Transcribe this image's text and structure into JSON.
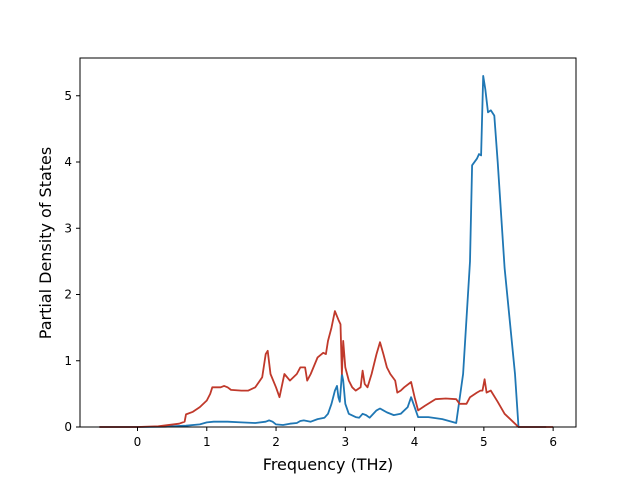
{
  "chart_data": {
    "type": "line",
    "title": "",
    "xlabel": "Frequency (THz)",
    "ylabel": "Partial Density of States",
    "xlim": [
      -0.83,
      6.33
    ],
    "ylim": [
      0,
      5.57
    ],
    "xticks": [
      0,
      1,
      2,
      3,
      4,
      5,
      6
    ],
    "yticks": [
      0,
      1,
      2,
      3,
      4,
      5
    ],
    "grid": false,
    "legend": "none",
    "series": [
      {
        "color": "#1f77b4",
        "points": [
          [
            -0.55,
            0.0
          ],
          [
            0.0,
            0.0
          ],
          [
            0.4,
            0.005
          ],
          [
            0.7,
            0.02
          ],
          [
            0.9,
            0.04
          ],
          [
            1.0,
            0.07
          ],
          [
            1.1,
            0.08
          ],
          [
            1.3,
            0.08
          ],
          [
            1.5,
            0.07
          ],
          [
            1.7,
            0.06
          ],
          [
            1.85,
            0.08
          ],
          [
            1.9,
            0.1
          ],
          [
            1.95,
            0.08
          ],
          [
            2.0,
            0.04
          ],
          [
            2.1,
            0.03
          ],
          [
            2.2,
            0.05
          ],
          [
            2.3,
            0.06
          ],
          [
            2.35,
            0.09
          ],
          [
            2.4,
            0.1
          ],
          [
            2.5,
            0.08
          ],
          [
            2.6,
            0.12
          ],
          [
            2.7,
            0.14
          ],
          [
            2.75,
            0.2
          ],
          [
            2.8,
            0.35
          ],
          [
            2.85,
            0.55
          ],
          [
            2.88,
            0.62
          ],
          [
            2.9,
            0.45
          ],
          [
            2.92,
            0.38
          ],
          [
            2.95,
            0.8
          ],
          [
            2.97,
            0.7
          ],
          [
            3.0,
            0.35
          ],
          [
            3.05,
            0.2
          ],
          [
            3.15,
            0.15
          ],
          [
            3.2,
            0.14
          ],
          [
            3.25,
            0.2
          ],
          [
            3.3,
            0.18
          ],
          [
            3.35,
            0.14
          ],
          [
            3.45,
            0.25
          ],
          [
            3.5,
            0.28
          ],
          [
            3.6,
            0.22
          ],
          [
            3.7,
            0.18
          ],
          [
            3.8,
            0.2
          ],
          [
            3.9,
            0.3
          ],
          [
            3.95,
            0.45
          ],
          [
            4.0,
            0.3
          ],
          [
            4.05,
            0.15
          ],
          [
            4.2,
            0.15
          ],
          [
            4.4,
            0.12
          ],
          [
            4.6,
            0.06
          ],
          [
            4.7,
            0.8
          ],
          [
            4.8,
            2.5
          ],
          [
            4.83,
            3.95
          ],
          [
            4.9,
            4.05
          ],
          [
            4.93,
            4.12
          ],
          [
            4.96,
            4.1
          ],
          [
            4.99,
            5.3
          ],
          [
            5.02,
            5.1
          ],
          [
            5.06,
            4.75
          ],
          [
            5.1,
            4.78
          ],
          [
            5.15,
            4.7
          ],
          [
            5.2,
            4.0
          ],
          [
            5.3,
            2.4
          ],
          [
            5.45,
            0.8
          ],
          [
            5.5,
            0.0
          ],
          [
            5.9,
            0.0
          ]
        ]
      },
      {
        "color": "#c0392b",
        "points": [
          [
            -0.55,
            0.0
          ],
          [
            0.0,
            0.0
          ],
          [
            0.3,
            0.01
          ],
          [
            0.6,
            0.05
          ],
          [
            0.68,
            0.08
          ],
          [
            0.7,
            0.19
          ],
          [
            0.8,
            0.23
          ],
          [
            0.9,
            0.3
          ],
          [
            1.0,
            0.4
          ],
          [
            1.05,
            0.5
          ],
          [
            1.08,
            0.6
          ],
          [
            1.15,
            0.6
          ],
          [
            1.2,
            0.6
          ],
          [
            1.25,
            0.62
          ],
          [
            1.3,
            0.6
          ],
          [
            1.35,
            0.56
          ],
          [
            1.5,
            0.55
          ],
          [
            1.6,
            0.55
          ],
          [
            1.7,
            0.6
          ],
          [
            1.8,
            0.75
          ],
          [
            1.85,
            1.1
          ],
          [
            1.88,
            1.15
          ],
          [
            1.92,
            0.8
          ],
          [
            2.0,
            0.6
          ],
          [
            2.05,
            0.45
          ],
          [
            2.1,
            0.7
          ],
          [
            2.12,
            0.8
          ],
          [
            2.2,
            0.7
          ],
          [
            2.3,
            0.8
          ],
          [
            2.35,
            0.9
          ],
          [
            2.42,
            0.9
          ],
          [
            2.45,
            0.7
          ],
          [
            2.5,
            0.8
          ],
          [
            2.6,
            1.05
          ],
          [
            2.68,
            1.12
          ],
          [
            2.72,
            1.1
          ],
          [
            2.75,
            1.3
          ],
          [
            2.8,
            1.5
          ],
          [
            2.85,
            1.75
          ],
          [
            2.9,
            1.62
          ],
          [
            2.93,
            1.55
          ],
          [
            2.95,
            0.8
          ],
          [
            2.97,
            1.3
          ],
          [
            3.0,
            0.9
          ],
          [
            3.05,
            0.7
          ],
          [
            3.1,
            0.6
          ],
          [
            3.15,
            0.55
          ],
          [
            3.22,
            0.6
          ],
          [
            3.25,
            0.85
          ],
          [
            3.28,
            0.65
          ],
          [
            3.32,
            0.6
          ],
          [
            3.38,
            0.8
          ],
          [
            3.45,
            1.1
          ],
          [
            3.5,
            1.28
          ],
          [
            3.55,
            1.1
          ],
          [
            3.6,
            0.9
          ],
          [
            3.65,
            0.8
          ],
          [
            3.72,
            0.7
          ],
          [
            3.75,
            0.52
          ],
          [
            3.8,
            0.55
          ],
          [
            3.85,
            0.6
          ],
          [
            3.95,
            0.68
          ],
          [
            4.0,
            0.45
          ],
          [
            4.05,
            0.25
          ],
          [
            4.15,
            0.32
          ],
          [
            4.3,
            0.42
          ],
          [
            4.45,
            0.43
          ],
          [
            4.6,
            0.42
          ],
          [
            4.65,
            0.35
          ],
          [
            4.75,
            0.35
          ],
          [
            4.8,
            0.45
          ],
          [
            4.9,
            0.52
          ],
          [
            4.95,
            0.55
          ],
          [
            4.98,
            0.55
          ],
          [
            5.01,
            0.72
          ],
          [
            5.04,
            0.52
          ],
          [
            5.1,
            0.55
          ],
          [
            5.2,
            0.38
          ],
          [
            5.3,
            0.2
          ],
          [
            5.45,
            0.05
          ],
          [
            5.5,
            0.0
          ],
          [
            6.0,
            0.0
          ]
        ]
      }
    ]
  }
}
